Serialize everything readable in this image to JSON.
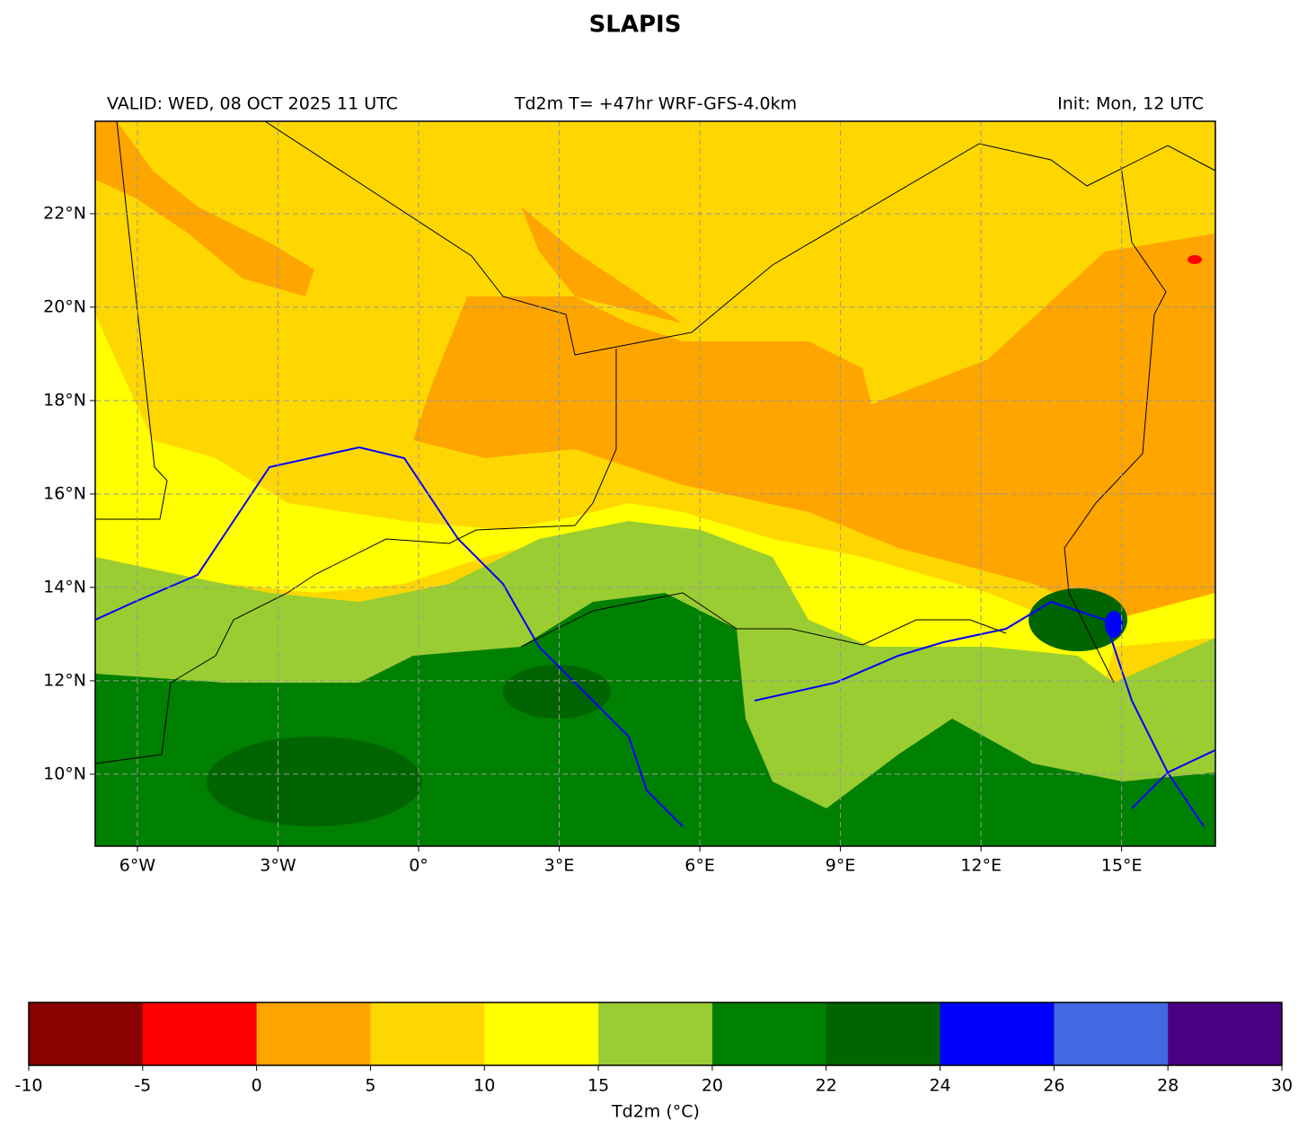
{
  "title": "SLAPIS",
  "valid": "VALID: WED, 08 OCT 2025 11 UTC",
  "subtitle": "Td2m T= +47hr WRF-GFS-4.0km",
  "init": "Init: Mon, 12 UTC",
  "map": {
    "xlim": [
      -6.9,
      17
    ],
    "ylim": [
      8.46,
      23.98
    ],
    "xticks": [
      {
        "value": -6,
        "label": "6°W"
      },
      {
        "value": -3,
        "label": "3°W"
      },
      {
        "value": 0,
        "label": "0°"
      },
      {
        "value": 3,
        "label": "3°E"
      },
      {
        "value": 6,
        "label": "6°E"
      },
      {
        "value": 9,
        "label": "9°E"
      },
      {
        "value": 12,
        "label": "12°E"
      },
      {
        "value": 15,
        "label": "15°E"
      }
    ],
    "yticks": [
      {
        "value": 10,
        "label": "10°N"
      },
      {
        "value": 12,
        "label": "12°N"
      },
      {
        "value": 14,
        "label": "14°N"
      },
      {
        "value": 16,
        "label": "16°N"
      },
      {
        "value": 18,
        "label": "18°N"
      },
      {
        "value": 20,
        "label": "20°N"
      },
      {
        "value": 22,
        "label": "22°N"
      }
    ],
    "grid": true
  },
  "colorbar": {
    "label": "Td2m (°C)",
    "ticks": [
      -10,
      -5,
      0,
      5,
      10,
      15,
      20,
      22,
      24,
      26,
      28,
      30
    ],
    "colors": [
      "#8b0000",
      "#ff0000",
      "#ffa500",
      "#ffd700",
      "#ffff00",
      "#9acd32",
      "#008000",
      "#006400",
      "#0000ff",
      "#4169e1",
      "#4b0082"
    ]
  }
}
